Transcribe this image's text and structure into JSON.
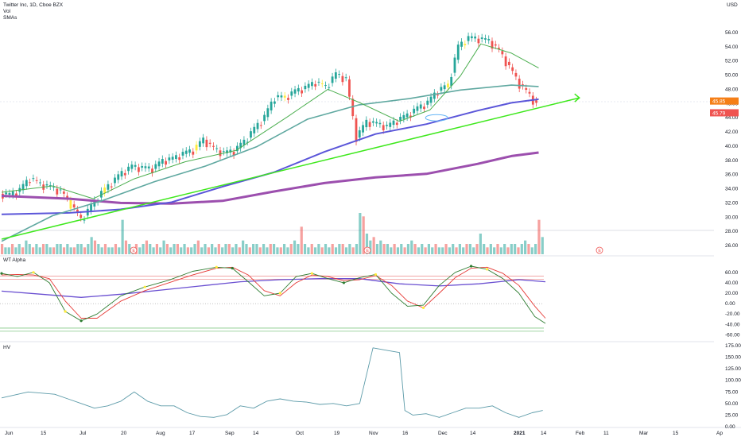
{
  "header": {
    "title": "Twitter Inc, 1D, Cboe BZX",
    "indicators": [
      "Vol",
      "SMAs"
    ],
    "currency": "USD"
  },
  "panes": {
    "price_label": "",
    "oscillator_label": "WT Alpha",
    "hv_label": "HV"
  },
  "badges": {
    "price_tag_1": "45.85",
    "price_tag_2": "45.79",
    "earnings_marker": "E"
  },
  "colors": {
    "up": "#26a69a",
    "down": "#ef5350",
    "highlight": "#ffeb3b",
    "sma_short": "#4caf50",
    "sma_mid": "#5fa8a0",
    "sma_long1": "#5b56d9",
    "sma_long2": "#9c4fae",
    "trendline": "#3ee81c",
    "wt_red": "#e53935",
    "wt_green": "#2e7d32",
    "wt_sig": "#6a4fd1",
    "hv": "#5b9aa8"
  },
  "chart_data": {
    "type": "line",
    "title": "Twitter Inc, 1D, Cboe BZX",
    "x_ticks": [
      "Jun",
      "15",
      "Jul",
      "20",
      "Aug",
      "17",
      "Sep",
      "14",
      "Oct",
      "19",
      "Nov",
      "16",
      "Dec",
      "14",
      "2021",
      "14",
      "Feb",
      "11",
      "Mar",
      "15",
      "Ap"
    ],
    "price": {
      "y_ticks": [
        56,
        54,
        52,
        50,
        48,
        46,
        44,
        42,
        40,
        38,
        36,
        34,
        32,
        30,
        28,
        26
      ],
      "ylim": [
        25,
        57
      ],
      "close_series": [
        [
          0,
          33.3
        ],
        [
          3,
          33.1
        ],
        [
          6,
          33.8
        ],
        [
          9,
          35.5
        ],
        [
          12,
          34.6
        ],
        [
          15,
          34.2
        ],
        [
          18,
          33.6
        ],
        [
          21,
          31.8
        ],
        [
          24,
          29.6
        ],
        [
          27,
          31.5
        ],
        [
          30,
          33.4
        ],
        [
          33,
          34.8
        ],
        [
          36,
          36.2
        ],
        [
          39,
          37.1
        ],
        [
          42,
          36.9
        ],
        [
          45,
          36.8
        ],
        [
          48,
          37.9
        ],
        [
          51,
          38.2
        ],
        [
          54,
          38.9
        ],
        [
          57,
          39.4
        ],
        [
          60,
          40.9
        ],
        [
          63,
          39.6
        ],
        [
          66,
          39.0
        ],
        [
          69,
          39.3
        ],
        [
          72,
          40.6
        ],
        [
          75,
          42.4
        ],
        [
          78,
          44.1
        ],
        [
          81,
          46.9
        ],
        [
          84,
          46.8
        ],
        [
          87,
          47.7
        ],
        [
          90,
          48.2
        ],
        [
          93,
          49.0
        ],
        [
          96,
          48.3
        ],
        [
          99,
          50.1
        ],
        [
          102,
          49.4
        ],
        [
          105,
          41.2
        ],
        [
          108,
          43.4
        ],
        [
          111,
          43.1
        ],
        [
          114,
          42.7
        ],
        [
          117,
          43.6
        ],
        [
          120,
          44.3
        ],
        [
          123,
          45.3
        ],
        [
          126,
          46.1
        ],
        [
          129,
          47.8
        ],
        [
          132,
          48.5
        ],
        [
          135,
          54.0
        ],
        [
          138,
          55.2
        ],
        [
          141,
          55.1
        ],
        [
          144,
          54.8
        ],
        [
          147,
          53.4
        ],
        [
          150,
          51.1
        ],
        [
          153,
          48.7
        ],
        [
          156,
          47.1
        ],
        [
          158,
          45.8
        ]
      ],
      "sma_20": [
        [
          0,
          33.5
        ],
        [
          15,
          34.4
        ],
        [
          27,
          32.6
        ],
        [
          39,
          35.4
        ],
        [
          54,
          37.8
        ],
        [
          69,
          39.4
        ],
        [
          84,
          44.1
        ],
        [
          96,
          48.0
        ],
        [
          105,
          46.2
        ],
        [
          117,
          43.5
        ],
        [
          126,
          45.1
        ],
        [
          135,
          49.9
        ],
        [
          141,
          54.4
        ],
        [
          150,
          53.1
        ],
        [
          158,
          51.0
        ]
      ],
      "sma_50": [
        [
          0,
          26.6
        ],
        [
          15,
          30.2
        ],
        [
          30,
          32.4
        ],
        [
          45,
          35.0
        ],
        [
          60,
          37.2
        ],
        [
          75,
          39.9
        ],
        [
          90,
          43.8
        ],
        [
          105,
          45.8
        ],
        [
          120,
          46.7
        ],
        [
          135,
          47.9
        ],
        [
          150,
          48.6
        ],
        [
          158,
          48.4
        ]
      ],
      "sma_100": [
        [
          0,
          30.4
        ],
        [
          20,
          30.6
        ],
        [
          35,
          31.1
        ],
        [
          50,
          32.1
        ],
        [
          65,
          34.3
        ],
        [
          80,
          36.3
        ],
        [
          95,
          39.2
        ],
        [
          110,
          41.7
        ],
        [
          125,
          43.1
        ],
        [
          140,
          45.0
        ],
        [
          150,
          46.1
        ],
        [
          158,
          46.6
        ]
      ],
      "sma_200": [
        [
          0,
          33.0
        ],
        [
          20,
          32.6
        ],
        [
          35,
          32.0
        ],
        [
          50,
          31.9
        ],
        [
          65,
          32.3
        ],
        [
          80,
          33.6
        ],
        [
          95,
          34.8
        ],
        [
          110,
          35.6
        ],
        [
          125,
          36.1
        ],
        [
          140,
          37.5
        ],
        [
          150,
          38.6
        ],
        [
          158,
          39.1
        ]
      ],
      "trendline": [
        [
          0,
          26.9
        ],
        [
          170,
          46.8
        ]
      ]
    },
    "volume": {
      "values": [
        3,
        2,
        2,
        3,
        2,
        3,
        2,
        4,
        3,
        2,
        3,
        2,
        3,
        3,
        2,
        2,
        3,
        3,
        2,
        3,
        2,
        2,
        3,
        3,
        2,
        3,
        5,
        4,
        3,
        2,
        3,
        2,
        2,
        3,
        2,
        10,
        4,
        3,
        2,
        3,
        2,
        3,
        4,
        3,
        2,
        3,
        2,
        4,
        3,
        2,
        3,
        3,
        2,
        3,
        2,
        2,
        3,
        4,
        2,
        3,
        2,
        3,
        2,
        3,
        2,
        3,
        3,
        2,
        3,
        2,
        4,
        3,
        2,
        3,
        3,
        2,
        3,
        2,
        3,
        3,
        2,
        2,
        3,
        2,
        3,
        4,
        3,
        8,
        3,
        2,
        3,
        2,
        3,
        2,
        3,
        2,
        3,
        2,
        3,
        3,
        2,
        3,
        2,
        3,
        12,
        11,
        6,
        4,
        5,
        3,
        4,
        3,
        3,
        2,
        3,
        2,
        3,
        2,
        3,
        4,
        3,
        2,
        3,
        2,
        3,
        2,
        3,
        2,
        2,
        3,
        2,
        3,
        2,
        3,
        2,
        3,
        3,
        2,
        3,
        6,
        3,
        2,
        3,
        2,
        3,
        2,
        3,
        2,
        3,
        3,
        2,
        3,
        4,
        3,
        2,
        3,
        10,
        5
      ]
    },
    "oscillator": {
      "y_ticks": [
        60,
        40,
        20,
        0,
        -20,
        -40,
        -60
      ],
      "ylim": [
        -70,
        75
      ],
      "wt1": [
        [
          0,
          58
        ],
        [
          6,
          52
        ],
        [
          12,
          60
        ],
        [
          18,
          40
        ],
        [
          24,
          -15
        ],
        [
          30,
          -33
        ],
        [
          36,
          -20
        ],
        [
          45,
          15
        ],
        [
          54,
          32
        ],
        [
          63,
          45
        ],
        [
          72,
          62
        ],
        [
          81,
          70
        ],
        [
          87,
          68
        ],
        [
          93,
          42
        ],
        [
          99,
          15
        ],
        [
          105,
          20
        ],
        [
          111,
          52
        ],
        [
          117,
          58
        ],
        [
          123,
          48
        ],
        [
          129,
          40
        ],
        [
          135,
          50
        ],
        [
          141,
          56
        ],
        [
          147,
          20
        ],
        [
          153,
          -5
        ],
        [
          159,
          -3
        ],
        [
          165,
          35
        ],
        [
          171,
          60
        ],
        [
          177,
          72
        ],
        [
          183,
          66
        ],
        [
          189,
          48
        ],
        [
          195,
          20
        ],
        [
          201,
          -25
        ],
        [
          205,
          -38
        ]
      ],
      "wt2": [
        [
          0,
          55
        ],
        [
          6,
          56
        ],
        [
          12,
          55
        ],
        [
          18,
          48
        ],
        [
          24,
          5
        ],
        [
          30,
          -28
        ],
        [
          36,
          -28
        ],
        [
          45,
          5
        ],
        [
          54,
          25
        ],
        [
          63,
          40
        ],
        [
          72,
          55
        ],
        [
          81,
          68
        ],
        [
          87,
          70
        ],
        [
          93,
          55
        ],
        [
          99,
          25
        ],
        [
          105,
          15
        ],
        [
          111,
          40
        ],
        [
          117,
          55
        ],
        [
          123,
          52
        ],
        [
          129,
          44
        ],
        [
          135,
          46
        ],
        [
          141,
          54
        ],
        [
          147,
          35
        ],
        [
          153,
          5
        ],
        [
          159,
          -8
        ],
        [
          165,
          20
        ],
        [
          171,
          50
        ],
        [
          177,
          68
        ],
        [
          183,
          70
        ],
        [
          189,
          58
        ],
        [
          195,
          35
        ],
        [
          201,
          -5
        ],
        [
          205,
          -28
        ]
      ],
      "signal": [
        [
          0,
          24
        ],
        [
          15,
          18
        ],
        [
          30,
          12
        ],
        [
          45,
          18
        ],
        [
          60,
          26
        ],
        [
          75,
          34
        ],
        [
          90,
          42
        ],
        [
          105,
          46
        ],
        [
          120,
          48
        ],
        [
          135,
          48
        ],
        [
          150,
          38
        ],
        [
          165,
          34
        ],
        [
          180,
          38
        ],
        [
          195,
          46
        ],
        [
          205,
          42
        ]
      ],
      "levels": [
        53,
        47,
        -47,
        -53
      ]
    },
    "hv": {
      "y_ticks": [
        175,
        150,
        125,
        100,
        75,
        50,
        25,
        0
      ],
      "ylim": [
        0,
        180
      ],
      "values": [
        [
          0,
          62
        ],
        [
          10,
          75
        ],
        [
          20,
          70
        ],
        [
          25,
          60
        ],
        [
          30,
          50
        ],
        [
          35,
          40
        ],
        [
          40,
          45
        ],
        [
          45,
          55
        ],
        [
          50,
          75
        ],
        [
          55,
          55
        ],
        [
          60,
          45
        ],
        [
          65,
          45
        ],
        [
          70,
          30
        ],
        [
          75,
          22
        ],
        [
          80,
          20
        ],
        [
          85,
          26
        ],
        [
          90,
          45
        ],
        [
          95,
          40
        ],
        [
          100,
          55
        ],
        [
          105,
          60
        ],
        [
          110,
          55
        ],
        [
          115,
          53
        ],
        [
          120,
          48
        ],
        [
          125,
          50
        ],
        [
          130,
          45
        ],
        [
          135,
          50
        ],
        [
          140,
          170
        ],
        [
          145,
          165
        ],
        [
          150,
          160
        ],
        [
          152,
          35
        ],
        [
          155,
          25
        ],
        [
          160,
          28
        ],
        [
          165,
          20
        ],
        [
          170,
          30
        ],
        [
          175,
          40
        ],
        [
          180,
          40
        ],
        [
          185,
          45
        ],
        [
          190,
          30
        ],
        [
          195,
          20
        ],
        [
          200,
          30
        ],
        [
          204,
          35
        ]
      ]
    }
  }
}
